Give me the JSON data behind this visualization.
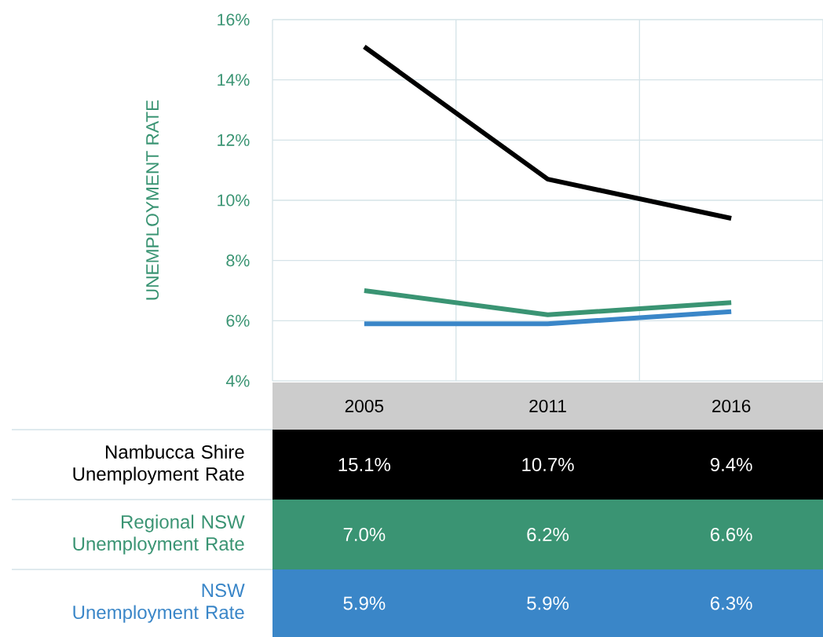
{
  "chart_data": {
    "type": "line",
    "ylabel": "UNEMPLOYMENT RATE",
    "categories": [
      "2005",
      "2011",
      "2016"
    ],
    "series": [
      {
        "name": "Nambucca Shire Unemployment Rate",
        "color": "#000000",
        "values": [
          15.1,
          10.7,
          9.4
        ],
        "value_labels": [
          "15.1%",
          "10.7%",
          "9.4%"
        ]
      },
      {
        "name": "Regional NSW Unemployment Rate",
        "color": "#3a9473",
        "values": [
          7.0,
          6.2,
          6.6
        ],
        "value_labels": [
          "7.0%",
          "6.2%",
          "6.6%"
        ]
      },
      {
        "name": "NSW Unemployment Rate",
        "color": "#3a86c8",
        "values": [
          5.9,
          5.9,
          6.3
        ],
        "value_labels": [
          "5.9%",
          "5.9%",
          "6.3%"
        ]
      }
    ],
    "ylim": [
      4,
      16
    ],
    "yticks": [
      {
        "value": 4,
        "label": "4%"
      },
      {
        "value": 6,
        "label": "6%"
      },
      {
        "value": 8,
        "label": "8%"
      },
      {
        "value": 10,
        "label": "10%"
      },
      {
        "value": 12,
        "label": "12%"
      },
      {
        "value": 14,
        "label": "14%"
      },
      {
        "value": 16,
        "label": "16%"
      }
    ],
    "grid": true,
    "line_style": "solid",
    "marker": "none"
  }
}
